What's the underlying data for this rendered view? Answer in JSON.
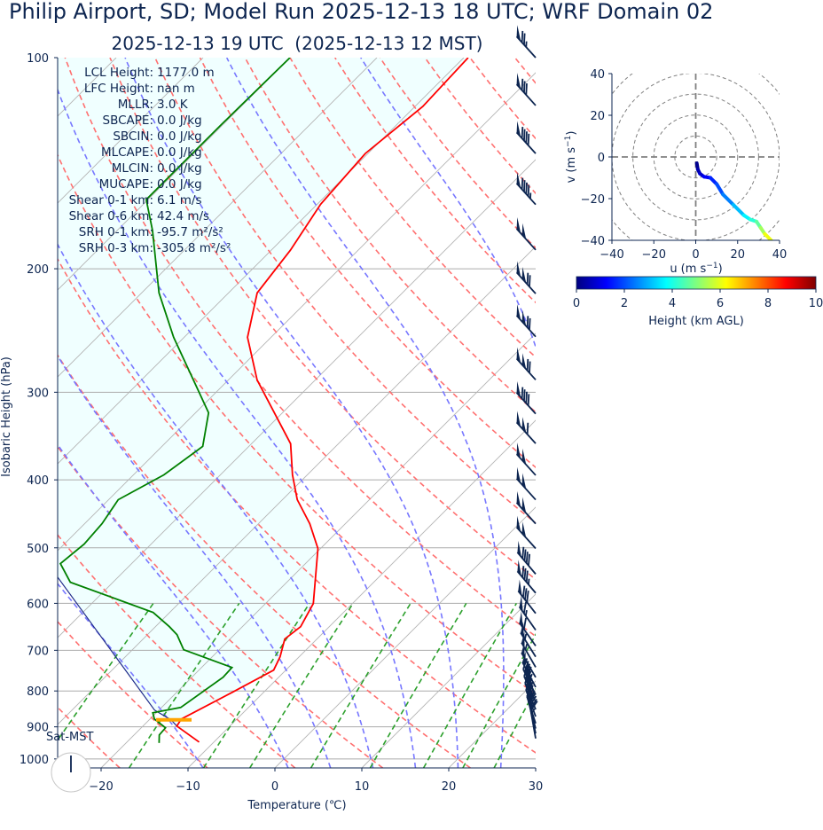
{
  "title": "Philip Airport, SD; Model Run 2025-12-13 18 UTC; WRF Domain 02",
  "subtitle": "2025-12-13 19 UTC  (2025-12-13 12 MST)",
  "colors": {
    "text": "#0d2550",
    "temperature": "#ff0000",
    "dewpoint": "#008000",
    "parcel": "#1f2a8a",
    "lcl": "#ffa500",
    "cin_fill": "#f0ffff",
    "dry_adiabat": "#ff7070",
    "moist_adiabat": "#7777ff",
    "mixing_ratio": "#2ca02c",
    "isotherm": "#b4b4b4",
    "barb": "#0d2550"
  },
  "chart_data": [
    {
      "type": "line",
      "name": "skew-t",
      "xlabel": "Temperature (℃)",
      "ylabel": "Isobaric Height (hPa)",
      "xlim": [
        -25,
        30
      ],
      "ylim": [
        1030,
        100
      ],
      "xticks": [
        "−20",
        "−10",
        "0",
        "10",
        "20",
        "30"
      ],
      "xtick_values": [
        -20,
        -10,
        0,
        10,
        20,
        30
      ],
      "yticks": [
        "100",
        "200",
        "300",
        "400",
        "500",
        "600",
        "700",
        "800",
        "900",
        "1000"
      ],
      "ytick_values": [
        100,
        200,
        300,
        400,
        500,
        600,
        700,
        800,
        900,
        1000
      ],
      "grid": true,
      "series": [
        {
          "name": "temperature",
          "p": [
            100,
            117.4,
            137,
            161.8,
            188.2,
            216.5,
            250.5,
            288.1,
            355.3,
            393.5,
            426.9,
            461.9,
            501.2,
            600.4,
            647.7,
            674.6,
            715.1,
            747.1,
            803.6,
            877,
            897.7,
            946.1
          ],
          "T": [
            -59.5,
            -59.1,
            -60.3,
            -59.6,
            -57.8,
            -56.7,
            -52.7,
            -46.7,
            -35.5,
            -31.7,
            -28.3,
            -24.1,
            -20.3,
            -14.5,
            -13.3,
            -13.7,
            -12.2,
            -11.4,
            -13.6,
            -16.4,
            -16.1,
            -11.7
          ]
        },
        {
          "name": "dewpoint",
          "p": [
            100,
            124.4,
            159.4,
            176.5,
            216.5,
            250.5,
            320.9,
            358.4,
            393.5,
            426.9,
            461.9,
            494,
            526.6,
            559.9,
            596.9,
            618.2,
            647.7,
            665,
            698.7,
            740.6,
            764.7,
            844.4,
            859.3,
            877,
            903,
            924.3,
            948.9
          ],
          "T": [
            -80,
            -80.2,
            -80.2,
            -75.9,
            -68,
            -61.2,
            -48.5,
            -45.3,
            -46.5,
            -48.9,
            -48,
            -47.7,
            -48.2,
            -44.9,
            -36.5,
            -31.9,
            -28.4,
            -26.6,
            -24.1,
            -16.5,
            -16.4,
            -17.8,
            -20.4,
            -19.5,
            -17.2,
            -17.1,
            -16.2
          ]
        },
        {
          "name": "parcel",
          "p": [
            946.1,
            897.7,
            879.5,
            851.9,
            550.2,
            300,
            100
          ],
          "T": [
            -11.7,
            -16.1,
            -17.5,
            -20.5,
            -47,
            -90,
            -150
          ]
        }
      ],
      "lcl_pressure": 879.5,
      "wind_barbs": {
        "units": "kt",
        "p": [
          100,
          117,
          137,
          162,
          188,
          217,
          250,
          288,
          322,
          355,
          394,
          427,
          462,
          501,
          545,
          580,
          620,
          655,
          690,
          715,
          740,
          765,
          790,
          810,
          830,
          850,
          870,
          890,
          905,
          920,
          935
        ],
        "dir": [
          318,
          318,
          318,
          318,
          318,
          318,
          318,
          318,
          318,
          318,
          318,
          318,
          318,
          318,
          320,
          320,
          322,
          325,
          325,
          328,
          330,
          330,
          332,
          334,
          336,
          338,
          340,
          342,
          345,
          348,
          350
        ],
        "speed": [
          75,
          80,
          90,
          95,
          100,
          120,
          120,
          120,
          90,
          110,
          100,
          100,
          100,
          100,
          90,
          85,
          80,
          65,
          60,
          55,
          55,
          50,
          50,
          45,
          45,
          40,
          35,
          30,
          25,
          20,
          15
        ]
      },
      "stats": [
        {
          "label": "LCL Height:",
          "value": "1177.0 m"
        },
        {
          "label": "LFC Height:",
          "value": "nan m"
        },
        {
          "label": "MLLR:",
          "value": "3.0 K"
        },
        {
          "label": "SBCAPE:",
          "value": "0.0 J/kg"
        },
        {
          "label": "SBCIN:",
          "value": "0.0 J/kg"
        },
        {
          "label": "MLCAPE:",
          "value": "0.0 J/kg"
        },
        {
          "label": "MLCIN:",
          "value": "0.0 J/kg"
        },
        {
          "label": "MUCAPE:",
          "value": "0.0 J/kg"
        },
        {
          "label": "Shear 0-1 km:",
          "value": "6.1 m/s"
        },
        {
          "label": "Shear 0-6 km:",
          "value": "42.4 m/s"
        },
        {
          "label": "SRH 0-1 km:",
          "value": "-95.7 m²/s²"
        },
        {
          "label": "SRH 0-3 km:",
          "value": "-305.8 m²/s²"
        }
      ],
      "clock_label": "Sat-MST"
    },
    {
      "type": "line",
      "name": "hodograph",
      "xlabel": "u (m s",
      "ylabel": "v (m s",
      "unit_exponent": "−1",
      "label_close": ")",
      "xlim": [
        -40,
        40
      ],
      "ylim": [
        -40,
        40
      ],
      "xticks": [
        "−40",
        "−20",
        "0",
        "20",
        "40"
      ],
      "yticks": [
        "40",
        "20",
        "0",
        "−20",
        "−40"
      ],
      "tick_values": [
        -40,
        -20,
        0,
        20,
        40
      ],
      "rings": [
        10,
        20,
        30,
        40,
        50
      ],
      "u": [
        0.5,
        1,
        2,
        4,
        7,
        10,
        13,
        18,
        23,
        26,
        29,
        31,
        33,
        36
      ],
      "v": [
        -3,
        -6,
        -8,
        -9.5,
        -10,
        -13,
        -18,
        -23,
        -28,
        -30,
        -31,
        -34,
        -37,
        -40
      ],
      "height_km": [
        0,
        0.3,
        0.6,
        1,
        1.4,
        1.8,
        2.2,
        2.8,
        3.4,
        3.9,
        4.4,
        5,
        5.7,
        6.5
      ]
    },
    {
      "type": "heatmap",
      "name": "colorbar",
      "label": "Height (km AGL)",
      "range": [
        0,
        10
      ],
      "ticks": [
        "0",
        "2",
        "4",
        "6",
        "8",
        "10"
      ],
      "tick_values": [
        0,
        2,
        4,
        6,
        8,
        10
      ],
      "colormap": "jet"
    }
  ]
}
